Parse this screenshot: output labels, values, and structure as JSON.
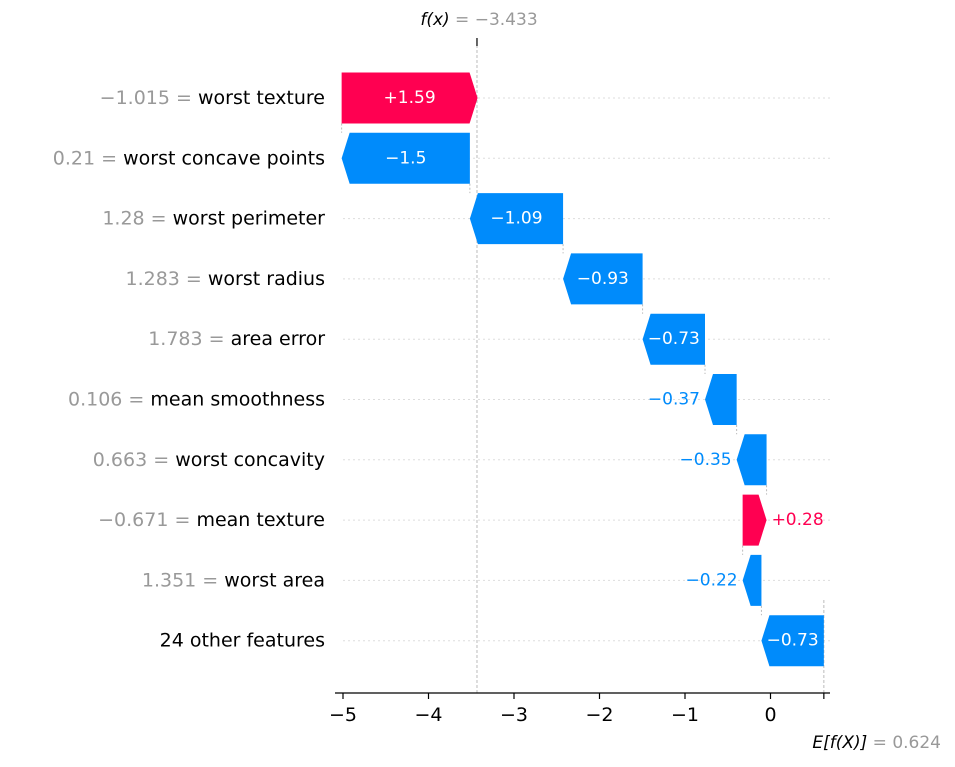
{
  "chart_data": {
    "type": "waterfall",
    "colors": {
      "positive": "#ff0051",
      "negative": "#008bfb",
      "label_gray": "#999999"
    },
    "fx": {
      "label": "f(x)",
      "eq": " = ",
      "value": "−3.433",
      "x": -3.433
    },
    "base": {
      "label": "E[f(X)]",
      "eq": " = ",
      "value": "0.624",
      "x": 0.624
    },
    "xlim": [
      -5.05,
      0.7
    ],
    "xticks": [
      {
        "value": -5,
        "label": "−5"
      },
      {
        "value": -4,
        "label": "−4"
      },
      {
        "value": -3,
        "label": "−3"
      },
      {
        "value": -2,
        "label": "−2"
      },
      {
        "value": -1,
        "label": "−1"
      },
      {
        "value": 0,
        "label": "0"
      }
    ],
    "features": [
      {
        "value_text": "−1.015",
        "name": "worst texture",
        "shap": 1.59,
        "label": "+1.59"
      },
      {
        "value_text": "0.21",
        "name": "worst concave points",
        "shap": -1.5,
        "label": "−1.5"
      },
      {
        "value_text": "1.28",
        "name": "worst perimeter",
        "shap": -1.09,
        "label": "−1.09"
      },
      {
        "value_text": "1.283",
        "name": "worst radius",
        "shap": -0.93,
        "label": "−0.93"
      },
      {
        "value_text": "1.783",
        "name": "area error",
        "shap": -0.73,
        "label": "−0.73"
      },
      {
        "value_text": "0.106",
        "name": "mean smoothness",
        "shap": -0.37,
        "label": "−0.37"
      },
      {
        "value_text": "0.663",
        "name": "worst concavity",
        "shap": -0.35,
        "label": "−0.35"
      },
      {
        "value_text": "−0.671",
        "name": "mean texture",
        "shap": 0.28,
        "label": "+0.28"
      },
      {
        "value_text": "1.351",
        "name": "worst area",
        "shap": -0.22,
        "label": "−0.22"
      },
      {
        "value_text": "",
        "name": "24 other features",
        "shap": -0.73,
        "label": "−0.73"
      }
    ]
  }
}
